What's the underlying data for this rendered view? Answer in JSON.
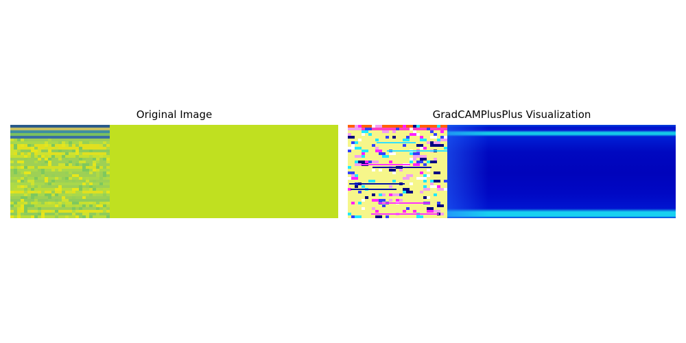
{
  "panels": {
    "left": {
      "title": "Original Image"
    },
    "right": {
      "title": "GradCAMPlusPlus Visualization"
    }
  },
  "colors": {
    "original_fill": "#c0e020",
    "heatmap_low": "#0008c0",
    "heatmap_cyan": "#18d0f0",
    "strip_highlight": "#f6f68a",
    "marker_magenta": "#ff20ff",
    "marker_navy": "#000080"
  }
}
